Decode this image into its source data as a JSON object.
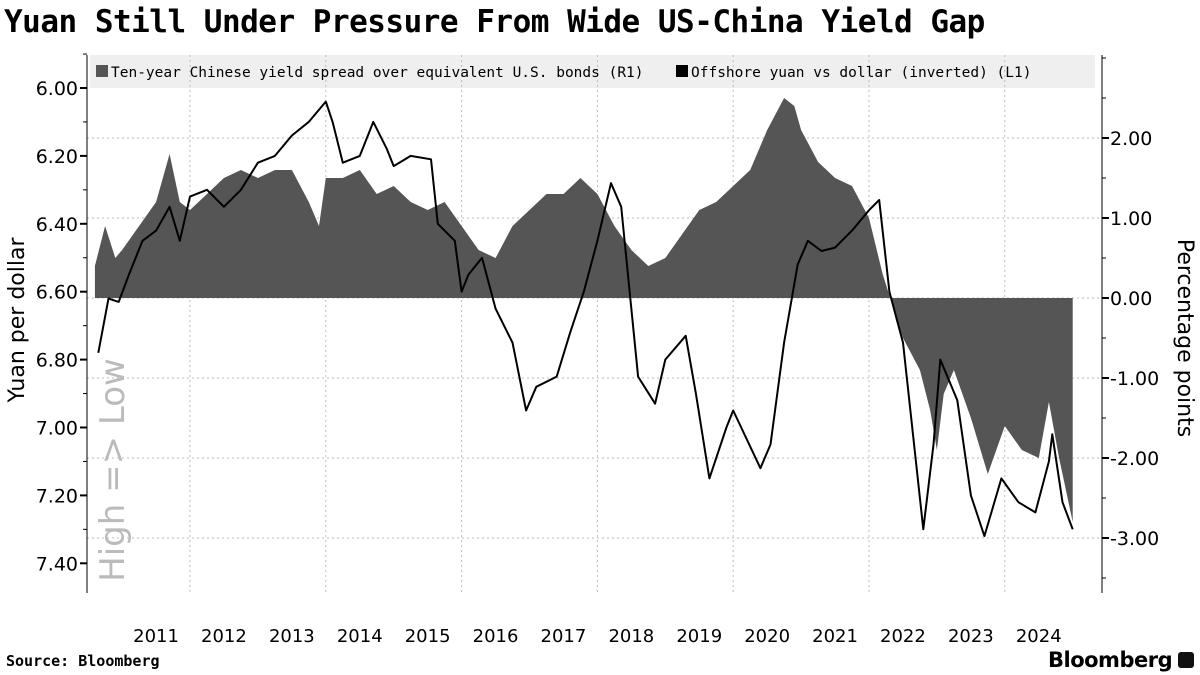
{
  "title": "Yuan Still Under Pressure From Wide US-China Yield Gap",
  "source": "Source:  Bloomberg",
  "brand": "Bloomberg",
  "chart_data": {
    "type": "line+area",
    "legend_placement": "top",
    "grid": true,
    "left_axis": {
      "label": "Yuan per dollar",
      "watermark": "High => Low",
      "inverted": true,
      "range": [
        5.9,
        7.5
      ],
      "ticks": [
        "6.00",
        "6.20",
        "6.40",
        "6.60",
        "6.80",
        "7.00",
        "7.20",
        "7.40"
      ]
    },
    "right_axis": {
      "label": "Percentage points",
      "range": [
        -3.5,
        3.0
      ],
      "ticks": [
        "2.00",
        "1.00",
        "0.00",
        "-1.00",
        "-2.00",
        "-3.00"
      ]
    },
    "x_ticks": [
      "2011",
      "2012",
      "2013",
      "2014",
      "2015",
      "2016",
      "2017",
      "2018",
      "2019",
      "2020",
      "2021",
      "2022",
      "2023",
      "2024"
    ],
    "series": [
      {
        "name": "Ten-year Chinese yield spread over equivalent U.S. bonds (R1)",
        "type": "area",
        "axis": "right",
        "color": "#555555",
        "points": [
          [
            2010.6,
            0.4
          ],
          [
            2010.75,
            0.9
          ],
          [
            2010.9,
            0.5
          ],
          [
            2011.0,
            0.6
          ],
          [
            2011.25,
            0.9
          ],
          [
            2011.5,
            1.2
          ],
          [
            2011.7,
            1.8
          ],
          [
            2011.85,
            1.2
          ],
          [
            2012.0,
            1.1
          ],
          [
            2012.25,
            1.3
          ],
          [
            2012.5,
            1.5
          ],
          [
            2012.75,
            1.6
          ],
          [
            2013.0,
            1.5
          ],
          [
            2013.25,
            1.6
          ],
          [
            2013.5,
            1.6
          ],
          [
            2013.75,
            1.2
          ],
          [
            2013.9,
            0.9
          ],
          [
            2014.0,
            1.5
          ],
          [
            2014.25,
            1.5
          ],
          [
            2014.5,
            1.6
          ],
          [
            2014.75,
            1.3
          ],
          [
            2015.0,
            1.4
          ],
          [
            2015.25,
            1.2
          ],
          [
            2015.5,
            1.1
          ],
          [
            2015.75,
            1.2
          ],
          [
            2016.0,
            0.9
          ],
          [
            2016.25,
            0.6
          ],
          [
            2016.5,
            0.5
          ],
          [
            2016.75,
            0.9
          ],
          [
            2017.0,
            1.1
          ],
          [
            2017.25,
            1.3
          ],
          [
            2017.5,
            1.3
          ],
          [
            2017.75,
            1.5
          ],
          [
            2018.0,
            1.3
          ],
          [
            2018.25,
            0.9
          ],
          [
            2018.5,
            0.6
          ],
          [
            2018.75,
            0.4
          ],
          [
            2019.0,
            0.5
          ],
          [
            2019.25,
            0.8
          ],
          [
            2019.5,
            1.1
          ],
          [
            2019.75,
            1.2
          ],
          [
            2020.0,
            1.4
          ],
          [
            2020.25,
            1.6
          ],
          [
            2020.5,
            2.1
          ],
          [
            2020.75,
            2.5
          ],
          [
            2020.9,
            2.4
          ],
          [
            2021.0,
            2.1
          ],
          [
            2021.25,
            1.7
          ],
          [
            2021.5,
            1.5
          ],
          [
            2021.75,
            1.4
          ],
          [
            2022.0,
            1.0
          ],
          [
            2022.2,
            0.3
          ],
          [
            2022.35,
            -0.1
          ],
          [
            2022.5,
            -0.5
          ],
          [
            2022.75,
            -0.9
          ],
          [
            2022.9,
            -1.4
          ],
          [
            2023.0,
            -1.9
          ],
          [
            2023.1,
            -1.2
          ],
          [
            2023.25,
            -0.9
          ],
          [
            2023.5,
            -1.5
          ],
          [
            2023.75,
            -2.2
          ],
          [
            2024.0,
            -1.6
          ],
          [
            2024.25,
            -1.9
          ],
          [
            2024.5,
            -2.0
          ],
          [
            2024.65,
            -1.3
          ],
          [
            2024.8,
            -2.0
          ],
          [
            2025.0,
            -2.8
          ]
        ]
      },
      {
        "name": "Offshore yuan vs dollar (inverted) (L1)",
        "type": "line",
        "axis": "left",
        "color": "#000000",
        "points": [
          [
            2010.65,
            6.78
          ],
          [
            2010.8,
            6.62
          ],
          [
            2010.95,
            6.63
          ],
          [
            2011.1,
            6.55
          ],
          [
            2011.3,
            6.45
          ],
          [
            2011.5,
            6.42
          ],
          [
            2011.7,
            6.35
          ],
          [
            2011.85,
            6.45
          ],
          [
            2012.0,
            6.32
          ],
          [
            2012.25,
            6.3
          ],
          [
            2012.5,
            6.35
          ],
          [
            2012.75,
            6.3
          ],
          [
            2013.0,
            6.22
          ],
          [
            2013.25,
            6.2
          ],
          [
            2013.5,
            6.14
          ],
          [
            2013.75,
            6.1
          ],
          [
            2014.0,
            6.04
          ],
          [
            2014.1,
            6.1
          ],
          [
            2014.25,
            6.22
          ],
          [
            2014.5,
            6.2
          ],
          [
            2014.7,
            6.1
          ],
          [
            2014.9,
            6.18
          ],
          [
            2015.0,
            6.23
          ],
          [
            2015.25,
            6.2
          ],
          [
            2015.55,
            6.21
          ],
          [
            2015.65,
            6.4
          ],
          [
            2015.9,
            6.45
          ],
          [
            2016.0,
            6.6
          ],
          [
            2016.1,
            6.55
          ],
          [
            2016.3,
            6.5
          ],
          [
            2016.5,
            6.65
          ],
          [
            2016.75,
            6.75
          ],
          [
            2016.95,
            6.95
          ],
          [
            2017.1,
            6.88
          ],
          [
            2017.4,
            6.85
          ],
          [
            2017.6,
            6.72
          ],
          [
            2017.8,
            6.6
          ],
          [
            2018.0,
            6.45
          ],
          [
            2018.2,
            6.28
          ],
          [
            2018.35,
            6.35
          ],
          [
            2018.6,
            6.85
          ],
          [
            2018.85,
            6.93
          ],
          [
            2019.0,
            6.8
          ],
          [
            2019.3,
            6.73
          ],
          [
            2019.45,
            6.9
          ],
          [
            2019.65,
            7.15
          ],
          [
            2019.9,
            7.0
          ],
          [
            2020.0,
            6.95
          ],
          [
            2020.4,
            7.12
          ],
          [
            2020.55,
            7.05
          ],
          [
            2020.75,
            6.75
          ],
          [
            2020.95,
            6.52
          ],
          [
            2021.1,
            6.45
          ],
          [
            2021.3,
            6.48
          ],
          [
            2021.5,
            6.47
          ],
          [
            2021.75,
            6.42
          ],
          [
            2022.0,
            6.36
          ],
          [
            2022.15,
            6.33
          ],
          [
            2022.3,
            6.6
          ],
          [
            2022.5,
            6.75
          ],
          [
            2022.8,
            7.3
          ],
          [
            2022.95,
            7.05
          ],
          [
            2023.05,
            6.8
          ],
          [
            2023.3,
            6.92
          ],
          [
            2023.5,
            7.2
          ],
          [
            2023.7,
            7.32
          ],
          [
            2023.95,
            7.15
          ],
          [
            2024.2,
            7.22
          ],
          [
            2024.45,
            7.25
          ],
          [
            2024.65,
            7.1
          ],
          [
            2024.7,
            7.02
          ],
          [
            2024.85,
            7.22
          ],
          [
            2025.0,
            7.3
          ]
        ]
      }
    ]
  }
}
